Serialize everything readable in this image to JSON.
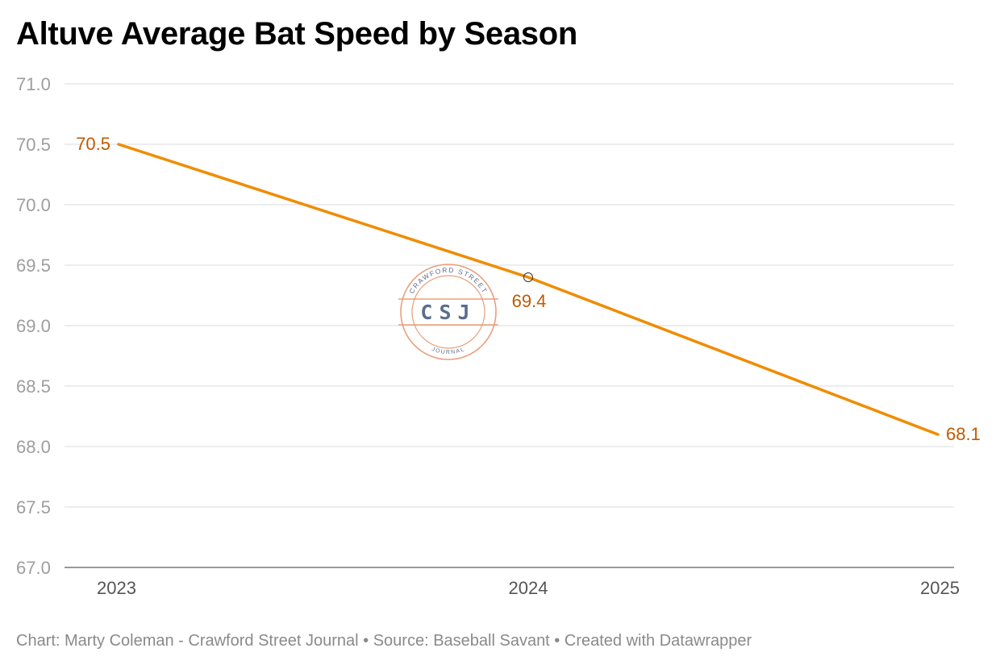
{
  "title": "Altuve Average Bat Speed by Season",
  "chart_data": {
    "type": "line",
    "x": [
      "2023",
      "2024",
      "2025"
    ],
    "series": [
      {
        "values": [
          70.5,
          69.4,
          68.1
        ],
        "color": "#f08c00"
      }
    ],
    "data_labels": [
      "70.5",
      "69.4",
      "68.1"
    ],
    "y_ticks": [
      "67.0",
      "67.5",
      "68.0",
      "68.5",
      "69.0",
      "69.5",
      "70.0",
      "70.5",
      "71.0"
    ],
    "x_ticks": [
      "2023",
      "2024",
      "2025"
    ],
    "ylim": [
      67.0,
      71.0
    ],
    "grid": true,
    "label_color": "#c05a00"
  },
  "watermark": {
    "top_text": "CRAWFORD STREET",
    "center_text": "CSJ",
    "bottom_text": "JOURNAL",
    "ring_color": "#e8a07a",
    "letter_color": "#5a6e8c"
  },
  "footer": {
    "credit": "Chart: Marty Coleman - Crawford Street Journal",
    "separator": " • ",
    "source": "Source: Baseball Savant",
    "tool": "Created with Datawrapper"
  }
}
